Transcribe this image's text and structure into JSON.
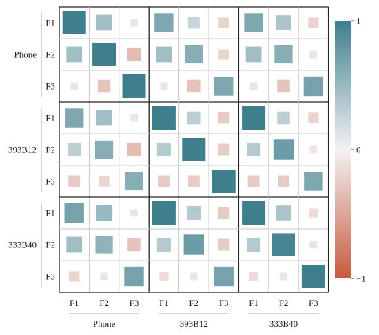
{
  "chart_data": {
    "type": "heatmap",
    "title": "",
    "groups": [
      "Phone",
      "393B12",
      "333B40"
    ],
    "features": [
      "F1",
      "F2",
      "F3"
    ],
    "row_labels": [
      "F1",
      "F2",
      "F3",
      "F1",
      "F2",
      "F3",
      "F1",
      "F2",
      "F3"
    ],
    "col_labels": [
      "F1",
      "F2",
      "F3",
      "F1",
      "F2",
      "F3",
      "F1",
      "F2",
      "F3"
    ],
    "values": [
      [
        1.0,
        0.45,
        -0.1,
        0.65,
        0.25,
        -0.2,
        0.65,
        0.4,
        -0.2
      ],
      [
        0.45,
        1.0,
        -0.35,
        0.45,
        0.6,
        -0.2,
        0.45,
        0.6,
        -0.1
      ],
      [
        -0.1,
        -0.3,
        1.0,
        -0.1,
        -0.3,
        0.65,
        -0.1,
        -0.3,
        0.7
      ],
      [
        0.65,
        0.45,
        -0.1,
        1.0,
        0.3,
        -0.25,
        1.0,
        0.3,
        -0.2
      ],
      [
        0.3,
        0.6,
        -0.35,
        0.35,
        1.0,
        -0.25,
        0.35,
        0.75,
        -0.1
      ],
      [
        -0.25,
        -0.2,
        0.6,
        -0.25,
        -0.25,
        1.0,
        -0.25,
        -0.25,
        0.65
      ],
      [
        0.7,
        0.5,
        -0.1,
        1.0,
        0.35,
        -0.25,
        1.0,
        0.4,
        -0.15
      ],
      [
        0.45,
        0.55,
        -0.3,
        0.35,
        0.75,
        -0.25,
        0.35,
        0.95,
        -0.1
      ],
      [
        -0.2,
        -0.1,
        0.7,
        -0.15,
        -0.1,
        0.7,
        -0.15,
        -0.1,
        1.0
      ]
    ],
    "colorbar": {
      "range": [
        -1,
        1
      ],
      "ticks": [
        "1",
        "0",
        "−1"
      ],
      "tick_values": [
        1,
        0,
        -1
      ],
      "colors": {
        "negative": "#c75a3f",
        "zero": "#f2f2f2",
        "positive": "#3f7f8d"
      }
    }
  }
}
